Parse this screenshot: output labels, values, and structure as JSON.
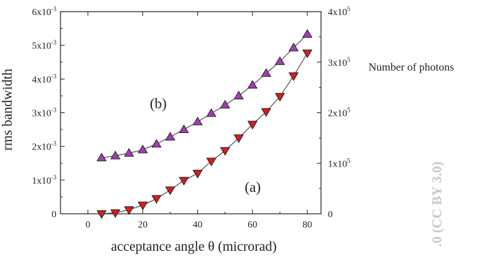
{
  "chart_data": {
    "type": "line",
    "xlabel": "acceptance angle θ (microrad)",
    "ylabel": "rms bandwidth",
    "y2label": "Number of photons",
    "xlim": [
      -10,
      85
    ],
    "ylim": [
      0,
      0.006
    ],
    "y2lim": [
      0,
      400000
    ],
    "x_ticks": [
      0,
      20,
      40,
      60,
      80
    ],
    "x_tick_labels": [
      "0",
      "20",
      "40",
      "60",
      "80"
    ],
    "y_ticks": [
      0,
      0.001,
      0.002,
      0.003,
      0.004,
      0.005,
      0.006
    ],
    "y_tick_labels": [
      {
        "id": "0",
        "mantissa": "0",
        "exp": ""
      },
      {
        "id": "1",
        "mantissa": "1x10",
        "exp": "-3"
      },
      {
        "id": "2",
        "mantissa": "2x10",
        "exp": "-3"
      },
      {
        "id": "3",
        "mantissa": "3x10",
        "exp": "-3"
      },
      {
        "id": "4",
        "mantissa": "4x10",
        "exp": "-3"
      },
      {
        "id": "5",
        "mantissa": "5x10",
        "exp": "-3"
      },
      {
        "id": "6",
        "mantissa": "6x10",
        "exp": "-3"
      }
    ],
    "y2_ticks": [
      0,
      100000,
      200000,
      300000,
      400000
    ],
    "y2_tick_labels": [
      {
        "id": "0",
        "mantissa": "0",
        "exp": ""
      },
      {
        "id": "1",
        "mantissa": "1x10",
        "exp": "5"
      },
      {
        "id": "2",
        "mantissa": "2x10",
        "exp": "5"
      },
      {
        "id": "3",
        "mantissa": "3x10",
        "exp": "5"
      },
      {
        "id": "4",
        "mantissa": "4x10",
        "exp": "5"
      }
    ],
    "grid": false,
    "legend": "none",
    "series": [
      {
        "id": "b",
        "axis": "left",
        "marker": "triangle-up",
        "color": "#a040b0",
        "x": [
          5,
          10,
          15,
          20,
          25,
          30,
          35,
          40,
          45,
          50,
          55,
          60,
          65,
          70,
          75,
          80
        ],
        "y": [
          0.00166,
          0.00172,
          0.0018,
          0.0019,
          0.00207,
          0.00228,
          0.0025,
          0.00273,
          0.00298,
          0.00323,
          0.0035,
          0.00382,
          0.00417,
          0.00452,
          0.00493,
          0.00533
        ]
      },
      {
        "id": "a",
        "axis": "right",
        "marker": "triangle-down",
        "color": "#dd1a1a",
        "x": [
          5,
          10,
          15,
          20,
          25,
          30,
          35,
          40,
          45,
          50,
          55,
          60,
          65,
          70,
          75,
          80
        ],
        "y": [
          0,
          2000,
          8000,
          17000,
          30000,
          47000,
          66000,
          80000,
          104000,
          125000,
          150000,
          177000,
          202000,
          232000,
          273000,
          318000
        ]
      }
    ],
    "annotations": [
      {
        "id": "b",
        "text": "(b)"
      },
      {
        "id": "a",
        "text": "(a)"
      }
    ],
    "watermark": ".0 (CC BY 3.0)"
  }
}
